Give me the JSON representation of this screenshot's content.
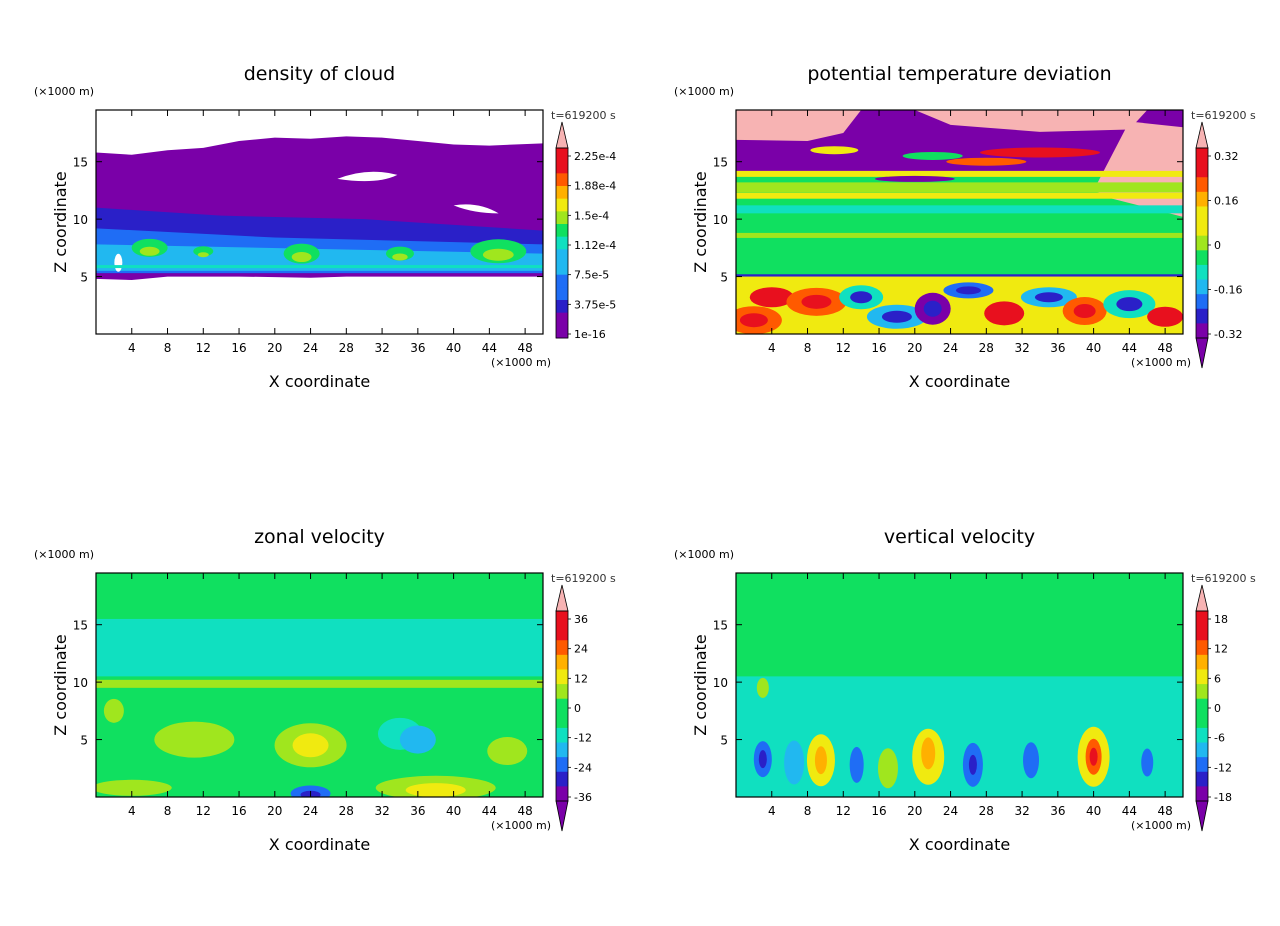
{
  "chart_data": [
    {
      "type": "heatmap",
      "title": "density of cloud",
      "time_label": "t=619200 s",
      "xlabel": "X coordinate",
      "ylabel": "Z coordinate",
      "x_unit": "(×1000 m)",
      "y_unit": "(×1000 m)",
      "xticks": [
        "4",
        "8",
        "12",
        "16",
        "20",
        "24",
        "28",
        "32",
        "36",
        "40",
        "44",
        "48"
      ],
      "yticks": [
        "5",
        "10",
        "15"
      ],
      "xlim": [
        0,
        50
      ],
      "ylim": [
        0,
        19.5
      ],
      "colorbar": {
        "labels": [
          "2.25e-4",
          "1.88e-4",
          "1.5e-4",
          "1.12e-4",
          "7.5e-5",
          "3.75e-5",
          "1e-16"
        ],
        "values": [
          0.000225,
          0.000188,
          0.00015,
          0.000112,
          7.5e-05,
          3.75e-05,
          1e-16
        ],
        "extend": "max"
      }
    },
    {
      "type": "heatmap",
      "title": "potential temperature deviation",
      "time_label": "t=619200 s",
      "xlabel": "X coordinate",
      "ylabel": "Z coordinate",
      "x_unit": "(×1000 m)",
      "y_unit": "(×1000 m)",
      "xticks": [
        "4",
        "8",
        "12",
        "16",
        "20",
        "24",
        "28",
        "32",
        "36",
        "40",
        "44",
        "48"
      ],
      "yticks": [
        "5",
        "10",
        "15"
      ],
      "xlim": [
        0,
        50
      ],
      "ylim": [
        0,
        19.5
      ],
      "colorbar": {
        "labels": [
          "0.32",
          "0.16",
          "0",
          "-0.16",
          "-0.32"
        ],
        "values": [
          0.32,
          0.16,
          0,
          -0.16,
          -0.32
        ],
        "extend": "both"
      }
    },
    {
      "type": "heatmap",
      "title": "zonal velocity",
      "time_label": "t=619200 s",
      "xlabel": "X coordinate",
      "ylabel": "Z coordinate",
      "x_unit": "(×1000 m)",
      "y_unit": "(×1000 m)",
      "xticks": [
        "4",
        "8",
        "12",
        "16",
        "20",
        "24",
        "28",
        "32",
        "36",
        "40",
        "44",
        "48"
      ],
      "yticks": [
        "5",
        "10",
        "15"
      ],
      "xlim": [
        0,
        50
      ],
      "ylim": [
        0,
        19.5
      ],
      "colorbar": {
        "labels": [
          "36",
          "24",
          "12",
          "0",
          "-12",
          "-24",
          "-36"
        ],
        "values": [
          36,
          24,
          12,
          0,
          -12,
          -24,
          -36
        ],
        "extend": "both"
      }
    },
    {
      "type": "heatmap",
      "title": "vertical velocity",
      "time_label": "t=619200 s",
      "xlabel": "X coordinate",
      "ylabel": "Z coordinate",
      "x_unit": "(×1000 m)",
      "y_unit": "(×1000 m)",
      "xticks": [
        "4",
        "8",
        "12",
        "16",
        "20",
        "24",
        "28",
        "32",
        "36",
        "40",
        "44",
        "48"
      ],
      "yticks": [
        "5",
        "10",
        "15"
      ],
      "xlim": [
        0,
        50
      ],
      "ylim": [
        0,
        19.5
      ],
      "colorbar": {
        "labels": [
          "18",
          "12",
          "6",
          "0",
          "-6",
          "-12",
          "-18"
        ],
        "values": [
          18,
          12,
          6,
          0,
          -6,
          -12,
          -18
        ],
        "extend": "both"
      }
    }
  ],
  "colors": {
    "palette": [
      "#7a00a8",
      "#2a20c8",
      "#1f6df5",
      "#21b8f0",
      "#10e0c0",
      "#10e060",
      "#a0e61e",
      "#f0ea10",
      "#ffb000",
      "#ff5a00",
      "#e8101e",
      "#f7b3b3"
    ]
  }
}
